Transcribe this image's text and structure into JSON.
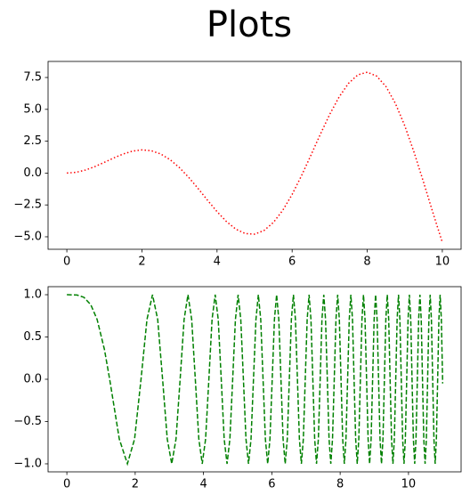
{
  "title": "Plots",
  "chart_data": [
    {
      "type": "line",
      "line_style": "dotted",
      "x": [
        0,
        0.25,
        0.5,
        0.75,
        1,
        1.25,
        1.5,
        1.75,
        2,
        2.25,
        2.5,
        2.75,
        3,
        3.25,
        3.5,
        3.75,
        4,
        4.25,
        4.5,
        4.75,
        5,
        5.25,
        5.5,
        5.75,
        6,
        6.25,
        6.5,
        6.75,
        7,
        7.25,
        7.5,
        7.75,
        8,
        8.25,
        8.5,
        8.75,
        9,
        9.25,
        9.5,
        9.75,
        10
      ],
      "series": [
        {
          "color": "#ff0000",
          "values": [
            0,
            0.062,
            0.24,
            0.511,
            0.841,
            1.186,
            1.496,
            1.722,
            1.819,
            1.751,
            1.496,
            1.05,
            0.423,
            -0.352,
            -1.228,
            -2.144,
            -3.027,
            -3.804,
            -4.399,
            -4.747,
            -4.795,
            -4.509,
            -3.88,
            -2.923,
            -1.676,
            -0.207,
            1.398,
            3.038,
            4.599,
            5.967,
            7.035,
            7.708,
            7.915,
            7.613,
            6.787,
            5.466,
            3.709,
            1.612,
            -0.714,
            -3.115,
            -5.44
          ]
        }
      ],
      "xlim": [
        -0.5,
        10.5
      ],
      "ylim": [
        -5.98,
        8.76
      ],
      "xticks": [
        0,
        2,
        4,
        6,
        8,
        10
      ],
      "yticks": [
        {
          "value": -5,
          "label": "−5.0"
        },
        {
          "value": -2.5,
          "label": "−2.5"
        },
        {
          "value": 0,
          "label": "0.0"
        },
        2.5,
        {
          "value": 5,
          "label": "5.0"
        },
        7.5
      ]
    },
    {
      "type": "line",
      "line_style": "dashed",
      "x": [
        0,
        0.3,
        0.5,
        0.7,
        0.886,
        1.1,
        1.253,
        1.535,
        1.772,
        1.982,
        2.171,
        2.345,
        2.507,
        2.659,
        2.802,
        2.939,
        3.07,
        3.195,
        3.316,
        3.432,
        3.545,
        3.654,
        3.76,
        3.863,
        3.963,
        4.061,
        4.157,
        4.25,
        4.342,
        4.431,
        4.519,
        4.605,
        4.689,
        4.772,
        4.854,
        4.934,
        5.013,
        5.091,
        5.168,
        5.243,
        5.317,
        5.391,
        5.463,
        5.535,
        5.605,
        5.675,
        5.743,
        5.811,
        5.879,
        5.945,
        6.011,
        6.076,
        6.14,
        6.204,
        6.267,
        6.329,
        6.391,
        6.452,
        6.512,
        6.572,
        6.632,
        6.691,
        6.749,
        6.807,
        6.865,
        6.922,
        6.978,
        7.034,
        7.09,
        7.145,
        7.2,
        7.254,
        7.308,
        7.362,
        7.415,
        7.467,
        7.52,
        7.572,
        7.624,
        7.675,
        7.726,
        7.776,
        7.827,
        7.877,
        7.927,
        7.976,
        8.025,
        8.074,
        8.122,
        8.17,
        8.218,
        8.266,
        8.313,
        8.361,
        8.407,
        8.454,
        8.5,
        8.546,
        8.592,
        8.638,
        8.683,
        8.728,
        8.773,
        8.818,
        8.862,
        8.906,
        8.95,
        8.994,
        9.038,
        9.081,
        9.124,
        9.167,
        9.21,
        9.253,
        9.295,
        9.337,
        9.379,
        9.421,
        9.462,
        9.504,
        9.545,
        9.586,
        9.627,
        9.667,
        9.708,
        9.748,
        9.789,
        9.829,
        9.869,
        9.908,
        9.948,
        9.987,
        10.026,
        10.066,
        10.104,
        10.143,
        10.182,
        10.22,
        10.259,
        10.297,
        10.335,
        10.373,
        10.41,
        10.448,
        10.486,
        10.523,
        10.56,
        10.597,
        10.635,
        10.671,
        10.708,
        10.745,
        10.781,
        10.817,
        10.854,
        10.89,
        10.926,
        10.962,
        10.998,
        11
      ],
      "series": [
        {
          "color": "#008000",
          "values": [
            1,
            0.996,
            0.969,
            0.882,
            0.707,
            0.352,
            0,
            -0.707,
            -1,
            -0.707,
            0,
            0.707,
            1,
            0.707,
            0,
            -0.707,
            -1,
            -0.707,
            0,
            0.707,
            1,
            0.707,
            0,
            -0.707,
            -1,
            -0.707,
            0,
            0.707,
            1,
            0.707,
            0,
            -0.707,
            -1,
            -0.707,
            0,
            0.707,
            1,
            0.707,
            0,
            -0.707,
            -1,
            -0.707,
            0,
            0.707,
            1,
            0.707,
            0,
            -0.707,
            -1,
            -0.707,
            0,
            0.707,
            1,
            0.707,
            0,
            -0.707,
            -1,
            -0.707,
            0,
            0.707,
            1,
            0.707,
            0,
            -0.707,
            -1,
            -0.707,
            0,
            0.707,
            1,
            0.707,
            0,
            -0.707,
            -1,
            -0.707,
            0,
            0.707,
            1,
            0.707,
            0,
            -0.707,
            -1,
            -0.707,
            0,
            0.707,
            1,
            0.707,
            0,
            -0.707,
            -1,
            -0.707,
            0,
            0.707,
            1,
            0.707,
            0,
            -0.707,
            -1,
            -0.707,
            0,
            0.707,
            1,
            0.707,
            0,
            -0.707,
            -1,
            -0.707,
            0,
            0.707,
            1,
            0.707,
            0,
            -0.707,
            -1,
            -0.707,
            0,
            0.707,
            1,
            0.707,
            0,
            -0.707,
            -1,
            -0.707,
            0,
            0.707,
            1,
            0.707,
            0,
            -0.707,
            -1,
            -0.707,
            0,
            0.707,
            1,
            0.707,
            0,
            -0.707,
            -1,
            -0.707,
            0,
            0.707,
            1,
            0.707,
            0,
            -0.707,
            -1,
            -0.707,
            0,
            0.707,
            1,
            0.707,
            0,
            -0.707,
            -1,
            -0.707,
            0,
            0.707,
            1,
            0.707,
            0,
            -0.05
          ]
        }
      ],
      "xlim": [
        -0.55,
        11.54
      ],
      "ylim": [
        -1.095,
        1.095
      ],
      "xticks": [
        0,
        2,
        4,
        6,
        8,
        10
      ],
      "yticks": [
        {
          "value": -1,
          "label": "−1.0"
        },
        {
          "value": -0.5,
          "label": "−0.5"
        },
        {
          "value": 0,
          "label": "0.0"
        },
        0.5,
        {
          "value": 1,
          "label": "1.0"
        }
      ]
    }
  ]
}
